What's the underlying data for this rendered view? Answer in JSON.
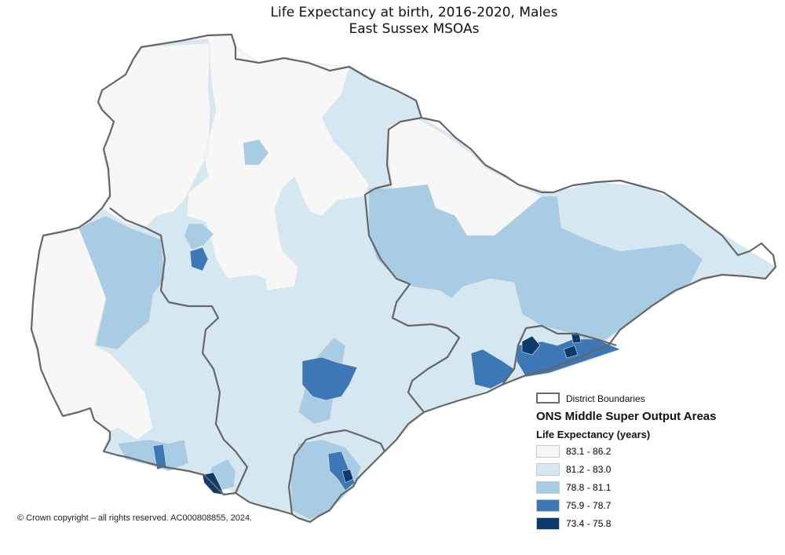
{
  "title": {
    "line1": "Life Expectancy at birth, 2016-2020, Males",
    "line2": "East Sussex  MSOAs"
  },
  "legend": {
    "boundary_label": "District Boundaries",
    "areas_heading": "ONS Middle Super Output Areas",
    "le_heading": "Life Expectancy (years)",
    "classes": [
      {
        "label": "83.1 - 86.2",
        "color": "#f7f7f7"
      },
      {
        "label": "81.2 - 83.0",
        "color": "#d5e8f1"
      },
      {
        "label": "78.8 - 81.1",
        "color": "#a7cce4"
      },
      {
        "label": "75.9 - 78.7",
        "color": "#3b78b5"
      },
      {
        "label": "73.4 - 75.8",
        "color": "#0b3a6b"
      }
    ]
  },
  "colors": {
    "boundary": "#666666",
    "msoa_edge": "#e2e2e2"
  },
  "copyright": "© Crown copyright – all rights reserved. AC000808855, 2024."
}
